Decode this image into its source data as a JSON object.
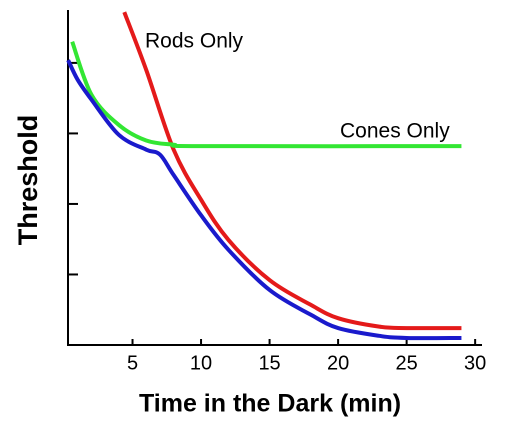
{
  "chart_data": {
    "type": "line",
    "xlabel": "Time in the Dark (min)",
    "ylabel": "Threshold",
    "xlim": [
      0,
      30.5
    ],
    "xticks": [
      5,
      10,
      15,
      20,
      25,
      30
    ],
    "ylim": [
      0,
      4.75
    ],
    "yticks": [
      1,
      2,
      3,
      4
    ],
    "series": [
      {
        "name": "Rods Only",
        "color": "#e41a1a",
        "x": [
          4.4,
          6,
          8,
          10,
          12,
          15,
          18,
          20,
          23,
          25,
          29
        ],
        "values": [
          4.72,
          3.9,
          2.77,
          2.06,
          1.49,
          0.92,
          0.57,
          0.38,
          0.26,
          0.24,
          0.24
        ]
      },
      {
        "name": "Cones Only",
        "color": "#33e633",
        "x": [
          0.6,
          2,
          4,
          6,
          8,
          10,
          29
        ],
        "values": [
          4.3,
          3.55,
          3.12,
          2.9,
          2.84,
          2.82,
          2.82
        ]
      },
      {
        "color": "#1a1acc",
        "x": [
          0.3,
          1,
          2,
          4,
          6,
          7,
          8,
          10,
          12,
          15,
          18,
          20,
          23,
          25,
          29
        ],
        "values": [
          4.04,
          3.76,
          3.48,
          2.98,
          2.77,
          2.7,
          2.41,
          1.84,
          1.35,
          0.78,
          0.43,
          0.24,
          0.13,
          0.1,
          0.1
        ]
      }
    ]
  }
}
